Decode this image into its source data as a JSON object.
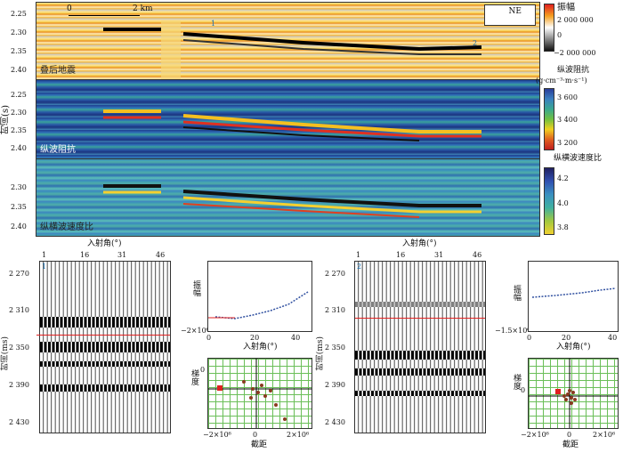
{
  "top": {
    "y_axis_title": "时间(s)",
    "ticks_p1": [
      "2.25",
      "2.30",
      "2.35",
      "2.40"
    ],
    "ticks_p2": [
      "2.25",
      "2.30",
      "2.35",
      "2.40"
    ],
    "ticks_p3": [
      "2.30",
      "2.35",
      "2.40"
    ],
    "scale_start": "0",
    "scale_end": "2 km",
    "direction": "NE",
    "marker1": "1",
    "marker2": "2",
    "panel1_label": "叠后地震",
    "panel2_label": "纵波阻抗",
    "panel3_label": "纵横波速度比",
    "cbar1_title": "振幅",
    "cbar1_ticks": [
      "2 000 000",
      "0",
      "−2 000 000"
    ],
    "cbar2_title": "纵波阻抗",
    "cbar2_unit": "(g·cm⁻³·m·s⁻¹)",
    "cbar2_ticks": [
      "3 600",
      "3 400",
      "3 200"
    ],
    "cbar3_title": "纵横波速度比",
    "cbar3_ticks": [
      "4.2",
      "4.0",
      "3.8"
    ]
  },
  "left": {
    "gather_title": "入射角(°)",
    "gather_ticks": [
      "1",
      "16",
      "31",
      "46"
    ],
    "marker": "1",
    "y_axis_title": "时间(ms)",
    "y_ticks": [
      "2 270",
      "2 310",
      "2 350",
      "2 390",
      "2 430"
    ],
    "amp_ylabel": "振幅",
    "amp_ytick": "−2×10⁶",
    "amp_xticks": [
      "0",
      "20",
      "40"
    ],
    "amp_xlabel": "入射角(°)",
    "xp_ylabel": "梯度",
    "xp_xlabel": "截距",
    "xp_xticks": [
      "−2×10⁶",
      "0",
      "2×10⁶"
    ],
    "xp_ytick": "0"
  },
  "right": {
    "gather_title": "入射角(°)",
    "gather_ticks": [
      "1",
      "16",
      "31",
      "46"
    ],
    "marker": "2",
    "y_axis_title": "时间(ms)",
    "y_ticks": [
      "2 270",
      "2 310",
      "2 350",
      "2 390",
      "2 430"
    ],
    "amp_ylabel": "振幅",
    "amp_ytick": "−1.5×10⁶",
    "amp_xticks": [
      "0",
      "20",
      "40"
    ],
    "amp_xlabel": "入射角(°)",
    "xp_ylabel": "梯度",
    "xp_xlabel": "截距",
    "xp_xticks": [
      "−2×10⁶",
      "0",
      "2×10⁶"
    ],
    "xp_ytick": "0"
  }
}
